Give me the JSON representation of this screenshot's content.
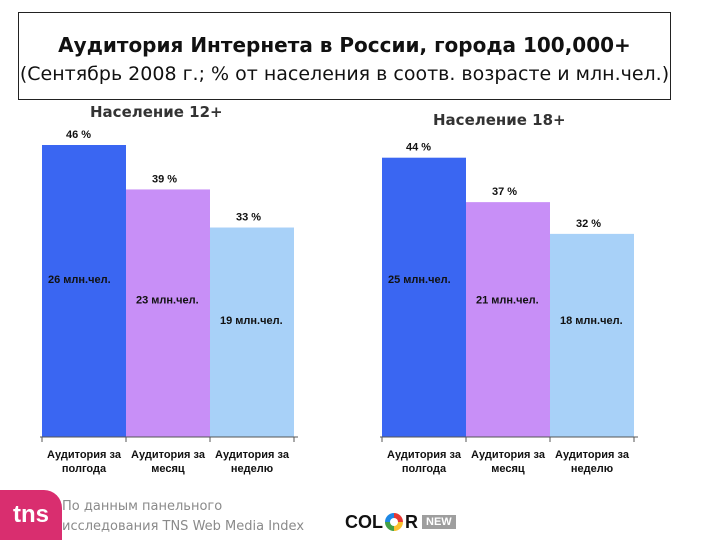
{
  "title": {
    "line1": "Аудитория Интернета в России, города 100,000+",
    "line2": "(Сентябрь 2008 г.; % от населения в соотв. возрасте и млн.чел.)"
  },
  "chart_data": [
    {
      "type": "bar",
      "title": "Население 12+",
      "categories": [
        [
          "Аудитория за",
          "полгода"
        ],
        [
          "Аудитория за",
          "месяц"
        ],
        [
          "Аудитория за",
          "неделю"
        ]
      ],
      "values": [
        46,
        39,
        33
      ],
      "value_labels": [
        "46 %",
        "39 %",
        "33 %"
      ],
      "inner_labels": [
        "26 млн.чел.",
        "23 млн.чел.",
        "19 млн.чел."
      ],
      "colors": [
        "#3a66f2",
        "#c88ff7",
        "#a8d1f8"
      ],
      "ylim": [
        0,
        46
      ]
    },
    {
      "type": "bar",
      "title": "Население 18+",
      "categories": [
        [
          "Аудитория за",
          "полгода"
        ],
        [
          "Аудитория за",
          "месяц"
        ],
        [
          "Аудитория за",
          "неделю"
        ]
      ],
      "values": [
        44,
        37,
        32
      ],
      "value_labels": [
        "44 %",
        "37 %",
        "32 %"
      ],
      "inner_labels": [
        "25 млн.чел.",
        "21 млн.чел.",
        "18 млн.чел."
      ],
      "colors": [
        "#3a66f2",
        "#c88ff7",
        "#a8d1f8"
      ],
      "ylim": [
        0,
        46
      ]
    }
  ],
  "footer": {
    "source_text": "По данным панельного исследования TNS Web Media Index",
    "tns_logo": "tns",
    "color_logo_left": "COL",
    "color_logo_right": "R",
    "color_logo_badge": "NEW"
  }
}
